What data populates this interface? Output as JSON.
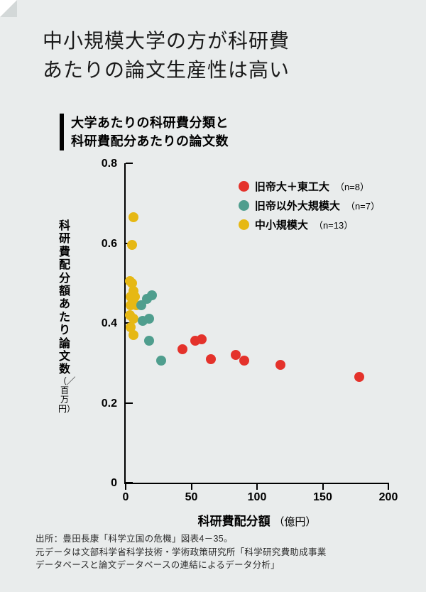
{
  "headline": "中小規模大学の方が科研費\nあたりの論文生産性は高い",
  "subtitle": "大学あたりの科研費分類と\n科研費配分あたりの論文数",
  "chart": {
    "type": "scatter",
    "background_color": "#e9ecec",
    "axis_color": "#000000",
    "x": {
      "label": "科研費配分額",
      "unit": "（億円）",
      "min": 0,
      "max": 200,
      "ticks": [
        0,
        50,
        100,
        150,
        200
      ]
    },
    "y": {
      "label": "科研費配分額あたり論文数",
      "unit": "（╱百万円）",
      "min": 0,
      "max": 0.8,
      "ticks": [
        0,
        0.2,
        0.4,
        0.6,
        0.8
      ]
    },
    "series": [
      {
        "key": "imperial",
        "label": "旧帝大＋東工大",
        "n": "（n=8）",
        "color": "#e4322b",
        "points": [
          [
            43,
            0.335
          ],
          [
            53,
            0.355
          ],
          [
            58,
            0.36
          ],
          [
            65,
            0.31
          ],
          [
            84,
            0.32
          ],
          [
            90,
            0.305
          ],
          [
            118,
            0.295
          ],
          [
            178,
            0.265
          ]
        ]
      },
      {
        "key": "large",
        "label": "旧帝以外大規模大",
        "n": "（n=7）",
        "color": "#4f9e8e",
        "points": [
          [
            12,
            0.445
          ],
          [
            16,
            0.46
          ],
          [
            20,
            0.47
          ],
          [
            13,
            0.405
          ],
          [
            18,
            0.41
          ],
          [
            18,
            0.355
          ],
          [
            27,
            0.305
          ]
        ]
      },
      {
        "key": "small",
        "label": "中小規模大",
        "n": "（n=13）",
        "color": "#e6b814",
        "points": [
          [
            6,
            0.665
          ],
          [
            5,
            0.595
          ],
          [
            3,
            0.505
          ],
          [
            5,
            0.5
          ],
          [
            6,
            0.48
          ],
          [
            4,
            0.465
          ],
          [
            7,
            0.465
          ],
          [
            4,
            0.445
          ],
          [
            8,
            0.445
          ],
          [
            3,
            0.42
          ],
          [
            6,
            0.41
          ],
          [
            4,
            0.39
          ],
          [
            6,
            0.37
          ]
        ]
      }
    ],
    "point_radius": 7
  },
  "source": "出所：豊田長康「科学立国の危機」図表4－35。\n元データは文部科学省科学技術・学術政策研究所「科学研究費助成事業\nデータベースと論文データベースの連結によるデータ分析」"
}
